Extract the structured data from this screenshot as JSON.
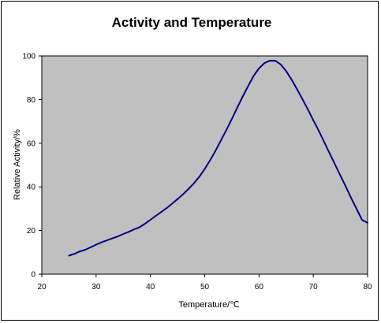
{
  "chart_data": {
    "type": "line",
    "title": "Activity and Temperature",
    "xlabel": "Temperature/℃",
    "ylabel": "Relative Activity/%",
    "xlim": [
      20,
      80
    ],
    "ylim": [
      0,
      100
    ],
    "xticks": [
      "20",
      "30",
      "40",
      "50",
      "60",
      "70",
      "80"
    ],
    "yticks": [
      "0",
      "20",
      "40",
      "60",
      "80",
      "100"
    ],
    "grid": false,
    "colors": {
      "plot_area": "#c0c0c0",
      "line": "#000080",
      "border": "#000000"
    },
    "series": [
      {
        "x": [
          25,
          26,
          27,
          28,
          29,
          30,
          31,
          32,
          33,
          34,
          35,
          36,
          37,
          38,
          39,
          40,
          41,
          42,
          43,
          44,
          45,
          46,
          47,
          48,
          49,
          50,
          51,
          52,
          53,
          54,
          55,
          56,
          57,
          58,
          59,
          60,
          61,
          62,
          63,
          64,
          65,
          66,
          67,
          68,
          69,
          70,
          71,
          72,
          73,
          74,
          75,
          76,
          77,
          78,
          79,
          80
        ],
        "y": [
          8.5,
          9.3,
          10.4,
          11.2,
          12.3,
          13.5,
          14.6,
          15.5,
          16.4,
          17.3,
          18.4,
          19.4,
          20.5,
          21.5,
          23.1,
          24.9,
          26.7,
          28.5,
          30.3,
          32.3,
          34.4,
          36.6,
          39.0,
          41.6,
          44.6,
          48.2,
          52.2,
          56.6,
          61.3,
          66.1,
          71.1,
          76.3,
          81.4,
          86.2,
          90.8,
          94.3,
          96.7,
          97.8,
          97.8,
          96.1,
          93.0,
          89.2,
          84.8,
          80.2,
          75.5,
          70.5,
          65.7,
          60.6,
          55.4,
          50.3,
          45.1,
          40.0,
          34.8,
          29.8,
          24.8,
          23.5
        ]
      }
    ]
  }
}
